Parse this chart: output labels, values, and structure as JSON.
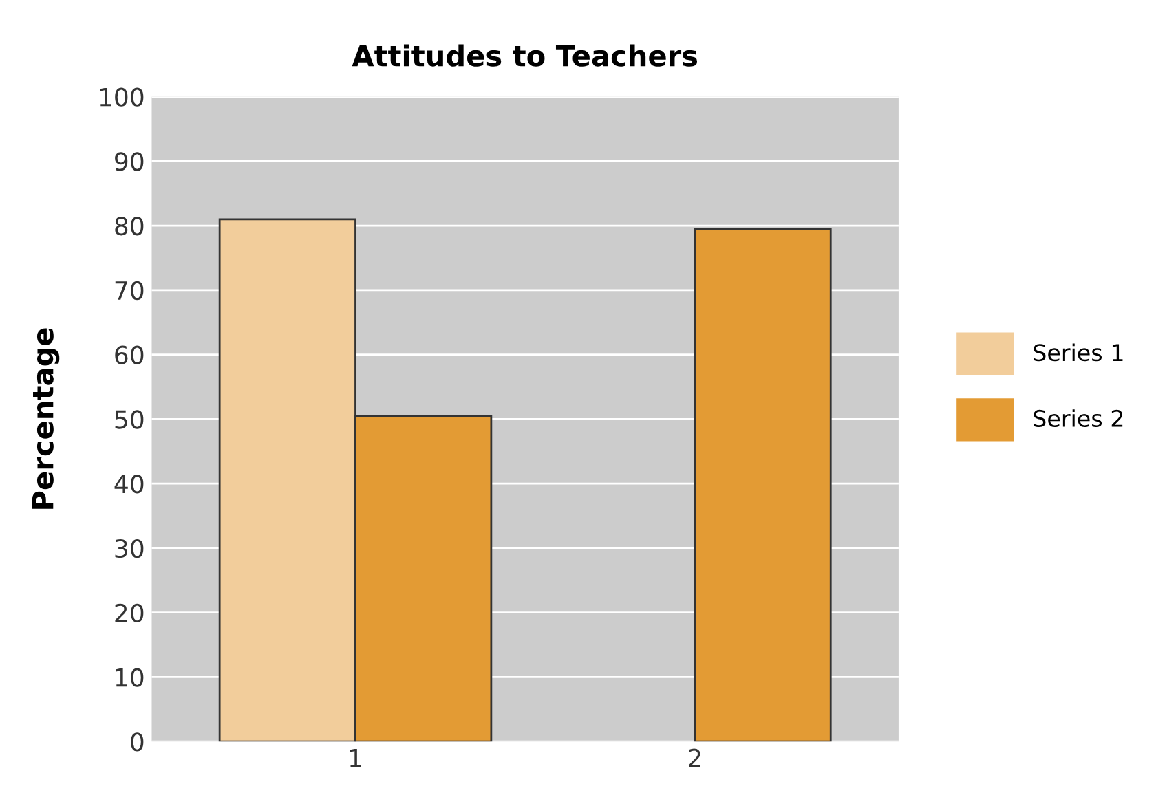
{
  "chart_data": {
    "type": "bar",
    "title": "Attitudes to Teachers",
    "ylabel": "Percentage",
    "categories": [
      "1",
      "2"
    ],
    "series": [
      {
        "name": "Series 1",
        "color": "#f2cd9b",
        "values": [
          81,
          null
        ]
      },
      {
        "name": "Series 2",
        "color": "#e39b34",
        "values": [
          50.5,
          79.5
        ]
      }
    ],
    "ylim": [
      0,
      100
    ],
    "yticks": [
      0,
      10,
      20,
      30,
      40,
      50,
      60,
      70,
      80,
      90,
      100
    ],
    "grid": "y",
    "legend": "right"
  }
}
